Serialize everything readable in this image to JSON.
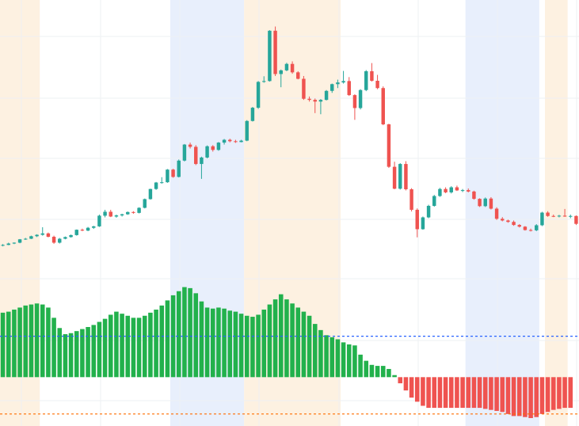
{
  "chart_data": {
    "type": "candlestick",
    "title": "",
    "xlabel": "",
    "ylabel": "",
    "grid": true,
    "legend": "none",
    "colors": {
      "up": "#26a69a",
      "down": "#ef5350",
      "histogram_positive": "#22b14c",
      "histogram_negative": "#ef5350",
      "band_orange": "#fdf1e1",
      "band_blue": "#e8effc",
      "level_blue": "#2962ff",
      "level_orange": "#ff6d00",
      "grid": "#eef0f3"
    },
    "background_bands": [
      {
        "color": "orange",
        "from": 0,
        "to": 7
      },
      {
        "color": "blue",
        "from": 30,
        "to": 43
      },
      {
        "color": "orange",
        "from": 43,
        "to": 60
      },
      {
        "color": "blue",
        "from": 82,
        "to": 95
      },
      {
        "color": "orange",
        "from": 96,
        "to": 100
      }
    ],
    "price_range": [
      0,
      100
    ],
    "candles": [
      [
        18.3,
        18.8,
        18.0,
        18.5
      ],
      [
        18.5,
        19.3,
        18.4,
        19.0
      ],
      [
        19.0,
        19.4,
        18.8,
        19.3
      ],
      [
        19.3,
        20.6,
        19.1,
        20.5
      ],
      [
        20.5,
        21.0,
        20.3,
        20.7
      ],
      [
        20.7,
        21.8,
        20.6,
        21.6
      ],
      [
        21.6,
        22.3,
        21.3,
        22.1
      ],
      [
        22.1,
        24.8,
        21.8,
        22.6
      ],
      [
        22.6,
        22.9,
        21.2,
        21.4
      ],
      [
        21.4,
        21.8,
        18.9,
        19.3
      ],
      [
        19.3,
        21.0,
        19.0,
        20.7
      ],
      [
        20.7,
        21.5,
        20.5,
        21.3
      ],
      [
        21.3,
        22.2,
        21.1,
        22.0
      ],
      [
        22.0,
        24.0,
        21.8,
        23.9
      ],
      [
        23.9,
        24.3,
        23.4,
        23.6
      ],
      [
        23.6,
        24.9,
        23.4,
        24.6
      ],
      [
        24.6,
        25.3,
        24.2,
        25.1
      ],
      [
        25.1,
        29.3,
        24.9,
        28.9
      ],
      [
        28.9,
        31.0,
        28.3,
        30.3
      ],
      [
        30.3,
        31.0,
        28.4,
        28.6
      ],
      [
        28.6,
        29.3,
        28.2,
        29.0
      ],
      [
        29.0,
        29.6,
        28.6,
        29.4
      ],
      [
        29.4,
        30.4,
        29.2,
        30.2
      ],
      [
        30.2,
        30.5,
        29.6,
        29.9
      ],
      [
        29.9,
        31.9,
        29.7,
        31.7
      ],
      [
        31.7,
        35.0,
        31.5,
        34.8
      ],
      [
        34.8,
        38.5,
        34.6,
        38.4
      ],
      [
        38.4,
        40.9,
        38.1,
        40.7
      ],
      [
        40.7,
        42.6,
        40.3,
        40.8
      ],
      [
        40.8,
        45.5,
        40.6,
        45.3
      ],
      [
        45.3,
        45.6,
        42.4,
        42.7
      ],
      [
        42.7,
        48.9,
        42.5,
        48.5
      ],
      [
        48.5,
        54.4,
        48.2,
        54.2
      ],
      [
        54.2,
        54.9,
        52.8,
        53.4
      ],
      [
        53.4,
        54.0,
        46.9,
        47.3
      ],
      [
        47.3,
        49.9,
        42.0,
        49.6
      ],
      [
        49.6,
        53.9,
        49.3,
        53.6
      ],
      [
        53.6,
        54.0,
        51.7,
        52.3
      ],
      [
        52.3,
        55.1,
        52.0,
        54.9
      ],
      [
        54.9,
        56.2,
        54.2,
        55.9
      ],
      [
        55.9,
        56.3,
        55.0,
        55.4
      ],
      [
        55.4,
        55.9,
        54.8,
        55.1
      ],
      [
        55.1,
        55.9,
        55.0,
        55.6
      ],
      [
        55.6,
        62.9,
        55.4,
        62.6
      ],
      [
        62.6,
        67.6,
        62.4,
        67.3
      ],
      [
        67.3,
        76.8,
        66.9,
        76.5
      ],
      [
        76.5,
        78.5,
        76.2,
        76.8
      ],
      [
        76.8,
        94.9,
        76.6,
        94.7
      ],
      [
        94.7,
        96.2,
        78.6,
        79.3
      ],
      [
        79.3,
        80.9,
        74.6,
        80.6
      ],
      [
        80.6,
        83.3,
        80.3,
        82.9
      ],
      [
        82.9,
        83.8,
        79.4,
        79.9
      ],
      [
        79.9,
        80.3,
        77.4,
        77.6
      ],
      [
        77.6,
        78.6,
        70.1,
        70.5
      ],
      [
        70.5,
        71.3,
        69.5,
        70.1
      ],
      [
        70.1,
        70.6,
        65.4,
        69.5
      ],
      [
        69.5,
        70.4,
        65.0,
        70.1
      ],
      [
        70.1,
        73.6,
        69.9,
        73.3
      ],
      [
        73.3,
        75.9,
        72.6,
        75.7
      ],
      [
        75.7,
        77.3,
        74.3,
        76.3
      ],
      [
        76.3,
        80.4,
        75.9,
        76.8
      ],
      [
        76.8,
        78.2,
        71.5,
        71.8
      ],
      [
        71.8,
        72.1,
        63.0,
        67.2
      ],
      [
        67.2,
        73.9,
        66.7,
        73.6
      ],
      [
        73.6,
        80.7,
        73.2,
        80.3
      ],
      [
        80.3,
        83.2,
        76.6,
        76.9
      ],
      [
        76.9,
        79.0,
        73.9,
        74.3
      ],
      [
        74.3,
        74.9,
        61.1,
        61.4
      ],
      [
        61.4,
        61.6,
        45.9,
        46.3
      ],
      [
        46.3,
        48.1,
        38.3,
        38.5
      ],
      [
        38.5,
        47.6,
        38.2,
        47.3
      ],
      [
        47.3,
        48.3,
        37.9,
        38.3
      ],
      [
        38.3,
        38.7,
        30.4,
        31.0
      ],
      [
        31.0,
        31.5,
        21.2,
        24.1
      ],
      [
        24.1,
        28.6,
        23.9,
        28.3
      ],
      [
        28.3,
        32.8,
        28.0,
        32.4
      ],
      [
        32.4,
        36.3,
        32.1,
        35.9
      ],
      [
        35.9,
        38.8,
        35.6,
        38.4
      ],
      [
        38.4,
        39.0,
        36.9,
        37.2
      ],
      [
        37.2,
        39.4,
        36.8,
        39.0
      ],
      [
        39.0,
        39.6,
        37.7,
        37.9
      ],
      [
        37.9,
        38.4,
        37.3,
        38.0
      ],
      [
        38.0,
        38.6,
        37.2,
        37.5
      ],
      [
        37.5,
        37.8,
        34.6,
        34.9
      ],
      [
        34.9,
        35.1,
        32.0,
        32.3
      ],
      [
        32.3,
        35.4,
        32.0,
        35.0
      ],
      [
        35.0,
        35.5,
        31.1,
        31.4
      ],
      [
        31.4,
        31.9,
        27.4,
        27.8
      ],
      [
        27.8,
        28.4,
        26.9,
        27.2
      ],
      [
        27.2,
        27.5,
        26.4,
        26.7
      ],
      [
        26.7,
        27.2,
        25.3,
        25.6
      ],
      [
        25.6,
        25.9,
        24.7,
        25.0
      ],
      [
        25.0,
        25.2,
        23.6,
        23.8
      ],
      [
        23.8,
        24.3,
        23.3,
        23.7
      ],
      [
        23.7,
        25.9,
        23.4,
        25.5
      ],
      [
        25.5,
        30.3,
        25.2,
        30.0
      ],
      [
        30.0,
        30.5,
        28.5,
        28.8
      ],
      [
        28.8,
        29.3,
        28.4,
        28.7
      ],
      [
        28.7,
        29.2,
        28.3,
        28.9
      ],
      [
        28.9,
        31.3,
        28.5,
        28.6
      ],
      [
        28.6,
        29.3,
        28.0,
        28.8
      ],
      [
        28.8,
        29.0,
        25.6,
        26.0
      ]
    ],
    "indicator": {
      "type": "histogram",
      "range": [
        -20,
        45
      ],
      "levels": [
        20,
        -18
      ],
      "values": [
        31.5,
        32.0,
        33.0,
        34.0,
        35.0,
        35.5,
        36.0,
        35.5,
        34.0,
        29.0,
        24.0,
        21.0,
        21.5,
        22.5,
        23.5,
        24.5,
        25.5,
        27.0,
        28.5,
        30.5,
        32.0,
        31.0,
        30.0,
        29.0,
        29.0,
        30.0,
        31.5,
        33.0,
        35.0,
        37.5,
        40.0,
        42.0,
        44.0,
        43.5,
        41.0,
        37.0,
        34.0,
        33.5,
        34.0,
        33.5,
        32.5,
        32.0,
        31.0,
        30.0,
        29.5,
        30.5,
        33.0,
        35.5,
        38.0,
        40.5,
        38.0,
        36.0,
        34.0,
        32.0,
        30.0,
        26.0,
        23.0,
        20.5,
        19.5,
        18.5,
        17.0,
        16.0,
        15.5,
        11.0,
        8.0,
        6.0,
        5.5,
        5.5,
        4.0,
        1.0,
        -3.0,
        -6.5,
        -10.0,
        -12.0,
        -14.0,
        -15.0,
        -15.0,
        -15.0,
        -15.0,
        -15.0,
        -15.0,
        -15.0,
        -15.0,
        -15.0,
        -15.0,
        -15.5,
        -16.0,
        -16.5,
        -17.0,
        -18.0,
        -19.0,
        -19.0,
        -19.5,
        -20.0,
        -19.5,
        -18.0,
        -17.0,
        -16.0,
        -15.5,
        -15.0,
        -15.0
      ]
    }
  }
}
